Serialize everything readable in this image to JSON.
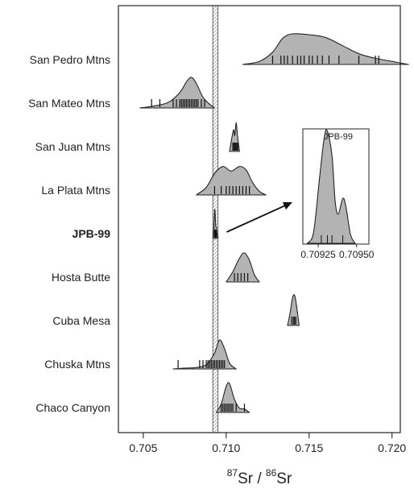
{
  "chart_data": {
    "type": "density-ridgeline",
    "xlabel": {
      "sup1": "87",
      "base1": "Sr",
      "sep": " / ",
      "sup2": "86",
      "base2": "Sr"
    },
    "xlim": [
      0.7035,
      0.7205
    ],
    "xticks": [
      {
        "v": 0.705,
        "label": "0.705"
      },
      {
        "v": 0.71,
        "label": "0.710"
      },
      {
        "v": 0.715,
        "label": "0.715"
      },
      {
        "v": 0.72,
        "label": "0.720"
      }
    ],
    "reference_band": [
      0.70925,
      0.70945
    ],
    "series": [
      {
        "name": "San Pedro Mtns",
        "bold": false,
        "height": 38,
        "curve": [
          [
            0.711,
            0.0
          ],
          [
            0.712,
            0.1
          ],
          [
            0.7128,
            0.4
          ],
          [
            0.7134,
            0.85
          ],
          [
            0.714,
            1.0
          ],
          [
            0.715,
            0.97
          ],
          [
            0.716,
            0.88
          ],
          [
            0.717,
            0.62
          ],
          [
            0.718,
            0.35
          ],
          [
            0.719,
            0.2
          ],
          [
            0.72,
            0.1
          ],
          [
            0.721,
            0.0
          ]
        ],
        "rugs": [
          0.7128,
          0.7133,
          0.7135,
          0.7137,
          0.714,
          0.7143,
          0.7145,
          0.7147,
          0.715,
          0.7152,
          0.7155,
          0.7158,
          0.7162,
          0.7168,
          0.718,
          0.719,
          0.7192
        ]
      },
      {
        "name": "San Mateo Mtns",
        "bold": false,
        "height": 38,
        "curve": [
          [
            0.7048,
            0.0
          ],
          [
            0.7055,
            0.05
          ],
          [
            0.7065,
            0.18
          ],
          [
            0.7072,
            0.5
          ],
          [
            0.7076,
            0.85
          ],
          [
            0.7079,
            1.0
          ],
          [
            0.7082,
            0.8
          ],
          [
            0.7086,
            0.35
          ],
          [
            0.709,
            0.12
          ],
          [
            0.7093,
            0.0
          ]
        ],
        "rugs": [
          0.7055,
          0.706,
          0.7068,
          0.707,
          0.7072,
          0.7073,
          0.7074,
          0.7075,
          0.7076,
          0.7077,
          0.7078,
          0.7079,
          0.708,
          0.7081,
          0.7082,
          0.7083,
          0.7085,
          0.7087
        ]
      },
      {
        "name": "San Juan Mtns",
        "bold": false,
        "height": 36,
        "curve": [
          [
            0.7102,
            0.0
          ],
          [
            0.71035,
            0.5
          ],
          [
            0.71045,
            0.75
          ],
          [
            0.71052,
            0.55
          ],
          [
            0.7106,
            1.0
          ],
          [
            0.71068,
            0.55
          ],
          [
            0.7108,
            0.0
          ]
        ],
        "rugs": [
          0.7104,
          0.71046,
          0.71052,
          0.71058,
          0.71064,
          0.7107
        ]
      },
      {
        "name": "La Plata Mtns",
        "bold": false,
        "height": 38,
        "curve": [
          [
            0.7082,
            0.0
          ],
          [
            0.7088,
            0.25
          ],
          [
            0.7093,
            0.7
          ],
          [
            0.7098,
            0.93
          ],
          [
            0.7103,
            0.78
          ],
          [
            0.7108,
            0.93
          ],
          [
            0.7112,
            0.82
          ],
          [
            0.7116,
            0.4
          ],
          [
            0.712,
            0.12
          ],
          [
            0.7124,
            0.0
          ]
        ],
        "rugs": [
          0.7093,
          0.7097,
          0.71,
          0.7102,
          0.7104,
          0.7106,
          0.7108,
          0.711,
          0.7112,
          0.7114
        ]
      },
      {
        "name": "JPB-99",
        "bold": true,
        "height": 36,
        "curve": [
          [
            0.70922,
            0.0
          ],
          [
            0.70925,
            0.3
          ],
          [
            0.70931,
            1.0
          ],
          [
            0.70937,
            0.45
          ],
          [
            0.70941,
            0.38
          ],
          [
            0.70945,
            0.15
          ],
          [
            0.7095,
            0.0
          ]
        ],
        "rugs": [
          0.7093,
          0.70933,
          0.70936,
          0.70941
        ]
      },
      {
        "name": "Hosta Butte",
        "bold": false,
        "height": 36,
        "curve": [
          [
            0.71,
            0.0
          ],
          [
            0.7104,
            0.35
          ],
          [
            0.7108,
            0.82
          ],
          [
            0.7111,
            1.0
          ],
          [
            0.7114,
            0.75
          ],
          [
            0.7117,
            0.25
          ],
          [
            0.712,
            0.0
          ]
        ],
        "rugs": [
          0.7105,
          0.7107,
          0.7109,
          0.7111,
          0.7113
        ]
      },
      {
        "name": "Cuba Mesa",
        "bold": false,
        "height": 38,
        "curve": [
          [
            0.7137,
            0.0
          ],
          [
            0.71385,
            0.4
          ],
          [
            0.714,
            0.9
          ],
          [
            0.7141,
            1.0
          ],
          [
            0.7142,
            0.8
          ],
          [
            0.7144,
            0.0
          ]
        ],
        "rugs": [
          0.71395,
          0.71405,
          0.71412,
          0.7142
        ]
      },
      {
        "name": "Chuska Mtns",
        "bold": false,
        "height": 36,
        "curve": [
          [
            0.7068,
            0.0
          ],
          [
            0.7075,
            0.03
          ],
          [
            0.7082,
            0.05
          ],
          [
            0.7088,
            0.15
          ],
          [
            0.7093,
            0.55
          ],
          [
            0.7096,
            1.0
          ],
          [
            0.7099,
            0.7
          ],
          [
            0.7102,
            0.2
          ],
          [
            0.7106,
            0.0
          ]
        ],
        "rugs": [
          0.7071,
          0.7084,
          0.7086,
          0.7088,
          0.7089,
          0.709,
          0.7091,
          0.7092,
          0.7093,
          0.7094,
          0.7095,
          0.7096,
          0.7097,
          0.7098,
          0.7099
        ]
      },
      {
        "name": "Chaco Canyon",
        "bold": false,
        "height": 36,
        "curve": [
          [
            0.7094,
            0.0
          ],
          [
            0.7097,
            0.3
          ],
          [
            0.71,
            0.9
          ],
          [
            0.7102,
            1.0
          ],
          [
            0.7105,
            0.45
          ],
          [
            0.7108,
            0.15
          ],
          [
            0.7111,
            0.12
          ],
          [
            0.7114,
            0.0
          ]
        ],
        "rugs": [
          0.7097,
          0.7098,
          0.7099,
          0.71,
          0.7101,
          0.7102,
          0.7103,
          0.7104,
          0.7106,
          0.7111
        ]
      }
    ],
    "inset": {
      "title": "JPB-99",
      "xlim": [
        0.70915,
        0.70958
      ],
      "xticks": [
        {
          "v": 0.70925,
          "label": "0.70925"
        },
        {
          "v": 0.7095,
          "label": "0.70950"
        }
      ],
      "curve": [
        [
          0.70918,
          0.0
        ],
        [
          0.70922,
          0.1
        ],
        [
          0.70926,
          0.6
        ],
        [
          0.70929,
          0.95
        ],
        [
          0.70931,
          1.0
        ],
        [
          0.70934,
          0.78
        ],
        [
          0.70936,
          0.38
        ],
        [
          0.70938,
          0.26
        ],
        [
          0.70941,
          0.4
        ],
        [
          0.70943,
          0.33
        ],
        [
          0.70946,
          0.08
        ],
        [
          0.70949,
          0.0
        ]
      ],
      "rugs": [
        0.70927,
        0.70931,
        0.70934,
        0.70941
      ]
    }
  }
}
